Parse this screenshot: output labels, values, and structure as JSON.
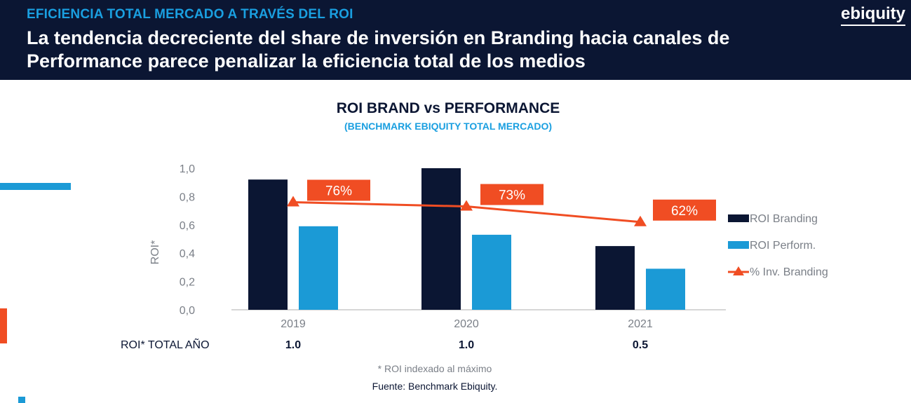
{
  "header": {
    "kicker": "EFICIENCIA TOTAL MERCADO A TRAVÉS DEL ROI",
    "title": "La tendencia decreciente del share de inversión en Branding hacia canales de Performance parece penalizar la eficiencia total de los medios",
    "logo": "ebiquity"
  },
  "colors": {
    "header_bg": "#0b1633",
    "kicker": "#1a9fe0",
    "branding": "#0b1633",
    "performance": "#1b9ad6",
    "line": "#f04d23",
    "text_gray": "#7a7f87"
  },
  "chart_data": {
    "type": "bar",
    "title": "ROI BRAND vs PERFORMANCE",
    "subtitle": "(BENCHMARK EBIQUITY TOTAL MERCADO)",
    "ylabel": "ROI*",
    "ylim": [
      0,
      1
    ],
    "yticks": [
      "0,0",
      "0,2",
      "0,4",
      "0,6",
      "0,8",
      "1,0"
    ],
    "categories": [
      "2019",
      "2020",
      "2021"
    ],
    "series": [
      {
        "name": "ROI Branding",
        "kind": "bar",
        "values": [
          0.92,
          1.0,
          0.45
        ]
      },
      {
        "name": "ROI Perform.",
        "kind": "bar",
        "values": [
          0.59,
          0.53,
          0.29
        ]
      },
      {
        "name": "% Inv. Branding",
        "kind": "line",
        "values": [
          0.76,
          0.73,
          0.62
        ],
        "labels": [
          "76%",
          "73%",
          "62%"
        ]
      }
    ],
    "legend_position": "right",
    "total_row": {
      "label": "ROI* TOTAL AÑO",
      "values": [
        "1.0",
        "1.0",
        "0.5"
      ]
    },
    "footnote": "* ROI indexado al máximo",
    "source": "Fuente: Benchmark Ebiquity."
  }
}
